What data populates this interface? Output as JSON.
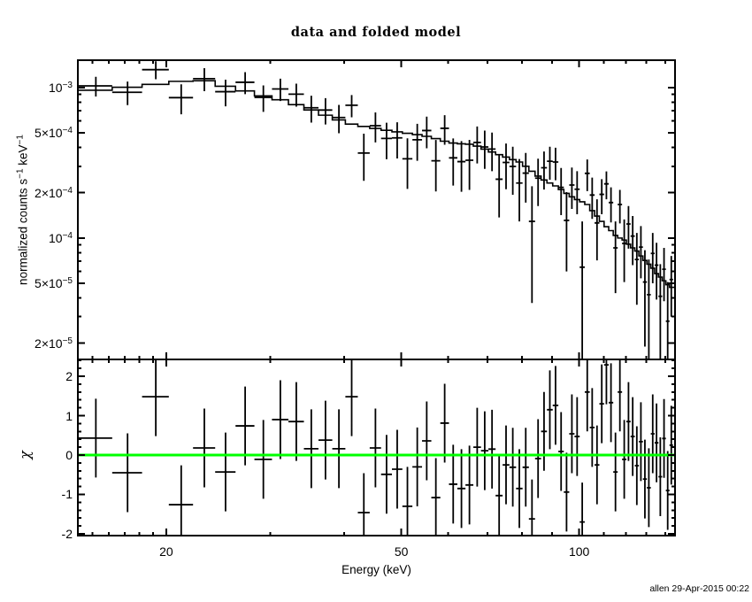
{
  "header": {
    "title": "data and folded model"
  },
  "footer": {
    "timestamp": "allen 29-Apr-2015 00:22"
  },
  "colors": {
    "foreground": "#000000",
    "background": "#ffffff",
    "zero_line": "#00ff00"
  },
  "chart_data": [
    {
      "type": "line",
      "panel": "spectrum",
      "title": "data and folded model",
      "ylabel_parts": [
        {
          "t": "normalized counts s"
        },
        {
          "sup": "−1"
        },
        {
          "t": " keV"
        },
        {
          "sup": "−1"
        }
      ],
      "xscale": "log",
      "yscale": "log",
      "xlim": [
        14.17,
        145.3
      ],
      "ylim": [
        1.56e-05,
        0.00152
      ],
      "unit_scale": 0.001,
      "x_major_ticks": [
        20,
        50,
        100
      ],
      "x_minor_ticks": [
        15,
        16,
        17,
        18,
        19,
        30,
        40,
        60,
        70,
        80,
        90,
        110,
        120,
        130,
        140
      ],
      "y_tick_labels": [
        {
          "t": "10",
          "sup": "−3",
          "v": 0.001
        },
        {
          "t": "5×10",
          "sup": "−4",
          "v": 0.0005
        },
        {
          "t": "2×10",
          "sup": "−4",
          "v": 0.0002
        },
        {
          "t": "10",
          "sup": "−4",
          "v": 0.0001
        },
        {
          "t": "5×10",
          "sup": "−5",
          "v": 5e-05
        },
        {
          "t": "2×10",
          "sup": "−5",
          "v": 2e-05
        }
      ],
      "y_minor_mantissae": [
        3,
        4,
        6,
        7,
        8,
        9
      ],
      "y_minor_decades": [
        1e-05,
        0.0001
      ],
      "bin_half_width_keV": 1.0,
      "centers_keV": [
        15.2,
        17.2,
        19.2,
        21.2,
        23.2,
        25.2,
        27.2,
        29.2,
        31.2,
        33.2,
        35.2,
        37.2,
        39.2,
        41.2,
        43.2,
        45.2,
        47.2,
        49.2,
        51.2,
        53.2,
        55.2,
        57.2,
        59.2,
        61.2,
        63.2,
        65.2,
        67.2,
        69.2,
        71.2,
        73.2,
        75.2,
        77.2,
        79.2,
        81.2,
        83.2,
        85.2,
        87.2,
        89.2,
        91.2,
        93.2,
        95.2,
        97.2,
        99.2,
        101.2,
        103.2,
        105.2,
        107.2,
        109.2,
        111.2,
        113.2,
        115.2,
        117.2,
        119.2,
        121.2,
        123.2,
        125.2,
        127.2,
        129.2,
        131.2,
        133.2,
        135.2,
        137.2,
        139.2,
        141.2,
        143.2
      ],
      "model_e3": [
        0.96,
        1.005,
        1.05,
        1.1,
        1.11,
        1.02,
        0.95,
        0.88,
        0.83,
        0.77,
        0.71,
        0.655,
        0.61,
        0.572,
        0.552,
        0.535,
        0.52,
        0.508,
        0.497,
        0.487,
        0.474,
        0.458,
        0.44,
        0.428,
        0.423,
        0.42,
        0.408,
        0.39,
        0.373,
        0.358,
        0.345,
        0.332,
        0.32,
        0.3,
        0.278,
        0.258,
        0.243,
        0.232,
        0.222,
        0.21,
        0.198,
        0.188,
        0.18,
        0.174,
        0.167,
        0.152,
        0.14,
        0.129,
        0.119,
        0.112,
        0.104,
        0.1,
        0.097,
        0.091,
        0.086,
        0.082,
        0.076,
        0.071,
        0.067,
        0.063,
        0.058,
        0.055,
        0.052,
        0.049,
        0.047
      ],
      "data_e3": [
        1.026,
        0.93,
        1.315,
        0.857,
        1.146,
        0.939,
        1.084,
        0.861,
        0.979,
        0.904,
        0.734,
        0.709,
        0.632,
        0.763,
        0.367,
        0.558,
        0.459,
        0.463,
        0.336,
        0.45,
        0.518,
        0.326,
        0.536,
        0.341,
        0.322,
        0.329,
        0.432,
        0.403,
        0.39,
        0.246,
        0.318,
        0.299,
        0.232,
        0.27,
        0.129,
        0.25,
        0.293,
        0.324,
        0.32,
        0.217,
        0.131,
        0.225,
        0.211,
        0.064,
        0.269,
        0.193,
        0.126,
        0.195,
        0.229,
        0.172,
        0.086,
        0.167,
        0.092,
        0.124,
        0.103,
        0.072,
        0.087,
        0.051,
        0.042,
        0.079,
        0.066,
        0.041,
        0.062,
        0.028,
        0.053
      ],
      "yerr_e3": [
        0.154,
        0.166,
        0.179,
        0.193,
        0.2,
        0.189,
        0.181,
        0.172,
        0.166,
        0.158,
        0.149,
        0.141,
        0.135,
        0.129,
        0.127,
        0.126,
        0.125,
        0.125,
        0.124,
        0.124,
        0.123,
        0.122,
        0.119,
        0.118,
        0.119,
        0.12,
        0.119,
        0.115,
        0.112,
        0.109,
        0.107,
        0.105,
        0.103,
        0.098,
        0.092,
        0.087,
        0.083,
        0.08,
        0.078,
        0.075,
        0.071,
        0.069,
        0.067,
        0.065,
        0.064,
        0.059,
        0.055,
        0.051,
        0.048,
        0.045,
        0.043,
        0.042,
        0.041,
        0.039,
        0.037,
        0.036,
        0.033,
        0.032,
        0.03,
        0.029,
        0.027,
        0.026,
        0.024,
        0.023,
        0.023
      ]
    },
    {
      "type": "scatter",
      "panel": "residuals",
      "ylabel": "χ",
      "xlabel": "Energy (keV)",
      "ylim": [
        -2.045,
        2.427
      ],
      "y_major_ticks": [
        2,
        1,
        0,
        -1,
        -2
      ],
      "y_minor_step": 0.2,
      "zero_line": {
        "y": 0,
        "color": "#00ff00"
      },
      "chi": [
        0.43,
        -0.45,
        1.48,
        -1.26,
        0.18,
        -0.43,
        0.74,
        -0.11,
        0.9,
        0.85,
        0.16,
        0.38,
        0.16,
        1.48,
        -1.46,
        0.18,
        -0.49,
        -0.36,
        -1.3,
        -0.3,
        0.36,
        -1.08,
        0.81,
        -0.74,
        -0.85,
        -0.76,
        0.2,
        0.11,
        0.15,
        -1.03,
        -0.25,
        -0.31,
        -0.85,
        -0.31,
        -1.62,
        -0.09,
        0.6,
        1.15,
        1.26,
        0.09,
        -0.94,
        0.54,
        0.47,
        -1.7,
        1.6,
        0.7,
        -0.25,
        1.3,
        2.29,
        1.33,
        -0.43,
        1.6,
        -0.11,
        0.85,
        0.47,
        -0.27,
        0.34,
        -0.61,
        -0.83,
        0.54,
        0.31,
        -0.55,
        0.42,
        -0.9,
        0.25
      ],
      "chi_err": 1.0
    }
  ]
}
